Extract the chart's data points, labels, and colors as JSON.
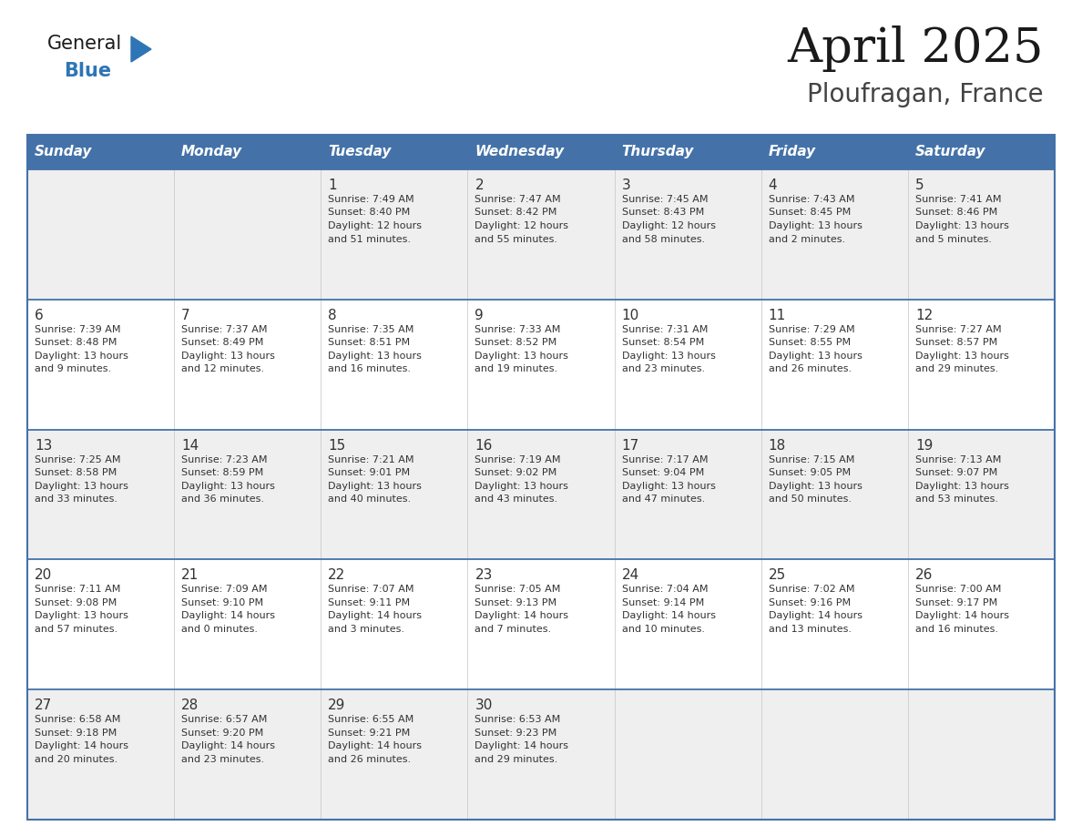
{
  "title": "April 2025",
  "subtitle": "Ploufragan, France",
  "header_color": "#4472A8",
  "header_text_color": "#FFFFFF",
  "row_bg_odd": "#EFEFEF",
  "row_bg_even": "#FFFFFF",
  "border_color": "#4472A8",
  "text_color": "#333333",
  "days_of_week": [
    "Sunday",
    "Monday",
    "Tuesday",
    "Wednesday",
    "Thursday",
    "Friday",
    "Saturday"
  ],
  "weeks": [
    [
      {
        "day": "",
        "info": ""
      },
      {
        "day": "",
        "info": ""
      },
      {
        "day": "1",
        "info": "Sunrise: 7:49 AM\nSunset: 8:40 PM\nDaylight: 12 hours\nand 51 minutes."
      },
      {
        "day": "2",
        "info": "Sunrise: 7:47 AM\nSunset: 8:42 PM\nDaylight: 12 hours\nand 55 minutes."
      },
      {
        "day": "3",
        "info": "Sunrise: 7:45 AM\nSunset: 8:43 PM\nDaylight: 12 hours\nand 58 minutes."
      },
      {
        "day": "4",
        "info": "Sunrise: 7:43 AM\nSunset: 8:45 PM\nDaylight: 13 hours\nand 2 minutes."
      },
      {
        "day": "5",
        "info": "Sunrise: 7:41 AM\nSunset: 8:46 PM\nDaylight: 13 hours\nand 5 minutes."
      }
    ],
    [
      {
        "day": "6",
        "info": "Sunrise: 7:39 AM\nSunset: 8:48 PM\nDaylight: 13 hours\nand 9 minutes."
      },
      {
        "day": "7",
        "info": "Sunrise: 7:37 AM\nSunset: 8:49 PM\nDaylight: 13 hours\nand 12 minutes."
      },
      {
        "day": "8",
        "info": "Sunrise: 7:35 AM\nSunset: 8:51 PM\nDaylight: 13 hours\nand 16 minutes."
      },
      {
        "day": "9",
        "info": "Sunrise: 7:33 AM\nSunset: 8:52 PM\nDaylight: 13 hours\nand 19 minutes."
      },
      {
        "day": "10",
        "info": "Sunrise: 7:31 AM\nSunset: 8:54 PM\nDaylight: 13 hours\nand 23 minutes."
      },
      {
        "day": "11",
        "info": "Sunrise: 7:29 AM\nSunset: 8:55 PM\nDaylight: 13 hours\nand 26 minutes."
      },
      {
        "day": "12",
        "info": "Sunrise: 7:27 AM\nSunset: 8:57 PM\nDaylight: 13 hours\nand 29 minutes."
      }
    ],
    [
      {
        "day": "13",
        "info": "Sunrise: 7:25 AM\nSunset: 8:58 PM\nDaylight: 13 hours\nand 33 minutes."
      },
      {
        "day": "14",
        "info": "Sunrise: 7:23 AM\nSunset: 8:59 PM\nDaylight: 13 hours\nand 36 minutes."
      },
      {
        "day": "15",
        "info": "Sunrise: 7:21 AM\nSunset: 9:01 PM\nDaylight: 13 hours\nand 40 minutes."
      },
      {
        "day": "16",
        "info": "Sunrise: 7:19 AM\nSunset: 9:02 PM\nDaylight: 13 hours\nand 43 minutes."
      },
      {
        "day": "17",
        "info": "Sunrise: 7:17 AM\nSunset: 9:04 PM\nDaylight: 13 hours\nand 47 minutes."
      },
      {
        "day": "18",
        "info": "Sunrise: 7:15 AM\nSunset: 9:05 PM\nDaylight: 13 hours\nand 50 minutes."
      },
      {
        "day": "19",
        "info": "Sunrise: 7:13 AM\nSunset: 9:07 PM\nDaylight: 13 hours\nand 53 minutes."
      }
    ],
    [
      {
        "day": "20",
        "info": "Sunrise: 7:11 AM\nSunset: 9:08 PM\nDaylight: 13 hours\nand 57 minutes."
      },
      {
        "day": "21",
        "info": "Sunrise: 7:09 AM\nSunset: 9:10 PM\nDaylight: 14 hours\nand 0 minutes."
      },
      {
        "day": "22",
        "info": "Sunrise: 7:07 AM\nSunset: 9:11 PM\nDaylight: 14 hours\nand 3 minutes."
      },
      {
        "day": "23",
        "info": "Sunrise: 7:05 AM\nSunset: 9:13 PM\nDaylight: 14 hours\nand 7 minutes."
      },
      {
        "day": "24",
        "info": "Sunrise: 7:04 AM\nSunset: 9:14 PM\nDaylight: 14 hours\nand 10 minutes."
      },
      {
        "day": "25",
        "info": "Sunrise: 7:02 AM\nSunset: 9:16 PM\nDaylight: 14 hours\nand 13 minutes."
      },
      {
        "day": "26",
        "info": "Sunrise: 7:00 AM\nSunset: 9:17 PM\nDaylight: 14 hours\nand 16 minutes."
      }
    ],
    [
      {
        "day": "27",
        "info": "Sunrise: 6:58 AM\nSunset: 9:18 PM\nDaylight: 14 hours\nand 20 minutes."
      },
      {
        "day": "28",
        "info": "Sunrise: 6:57 AM\nSunset: 9:20 PM\nDaylight: 14 hours\nand 23 minutes."
      },
      {
        "day": "29",
        "info": "Sunrise: 6:55 AM\nSunset: 9:21 PM\nDaylight: 14 hours\nand 26 minutes."
      },
      {
        "day": "30",
        "info": "Sunrise: 6:53 AM\nSunset: 9:23 PM\nDaylight: 14 hours\nand 29 minutes."
      },
      {
        "day": "",
        "info": ""
      },
      {
        "day": "",
        "info": ""
      },
      {
        "day": "",
        "info": ""
      }
    ]
  ],
  "logo_general_color": "#1a1a1a",
  "logo_blue_color": "#2E75B6",
  "logo_triangle_color": "#2E75B6",
  "title_color": "#1a1a1a",
  "subtitle_color": "#444444"
}
